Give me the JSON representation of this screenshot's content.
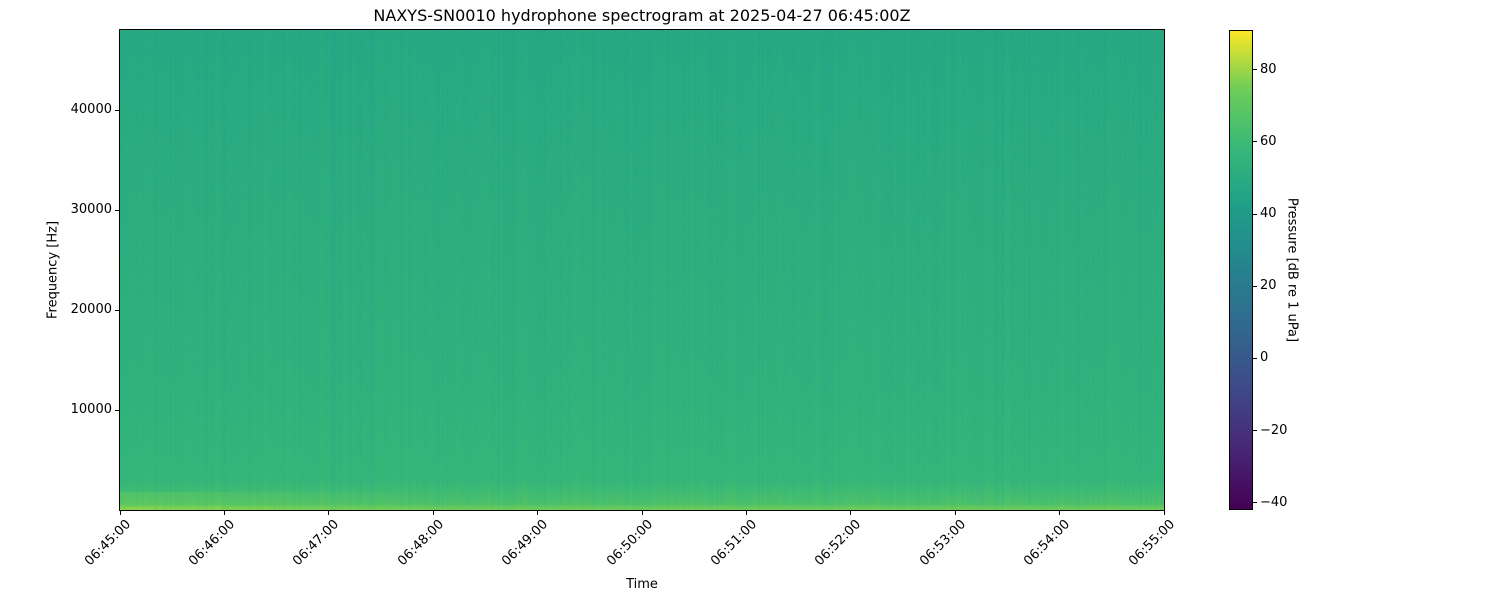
{
  "chart_data": {
    "type": "heatmap",
    "title": "NAXYS-SN0010 hydrophone spectrogram at 2025-04-27 06:45:00Z",
    "xlabel": "Time",
    "ylabel": "Frequency [Hz]",
    "colorbar_label": "Pressure [dB re 1 uPa]",
    "colormap": "viridis",
    "xlim": [
      "06:45:00",
      "06:55:00"
    ],
    "ylim": [
      0,
      48000
    ],
    "clim": [
      -42,
      91
    ],
    "x_ticks": [
      "06:45:00",
      "06:46:00",
      "06:47:00",
      "06:48:00",
      "06:49:00",
      "06:50:00",
      "06:51:00",
      "06:52:00",
      "06:53:00",
      "06:54:00",
      "06:55:00"
    ],
    "y_ticks": [
      10000,
      20000,
      30000,
      40000
    ],
    "y_tick_labels": [
      "10000",
      "20000",
      "30000",
      "40000"
    ],
    "c_ticks": [
      -40,
      -20,
      0,
      20,
      40,
      60,
      80
    ],
    "c_tick_labels": [
      "−40",
      "−20",
      "0",
      "20",
      "40",
      "60",
      "80"
    ],
    "approx_levels_db": [
      {
        "freq_hz": 48000,
        "db": 48
      },
      {
        "freq_hz": 38000,
        "db": 50
      },
      {
        "freq_hz": 25000,
        "db": 52
      },
      {
        "freq_hz": 12000,
        "db": 54
      },
      {
        "freq_hz": 3000,
        "db": 57
      },
      {
        "freq_hz": 500,
        "db": 65
      }
    ],
    "grid": false
  }
}
